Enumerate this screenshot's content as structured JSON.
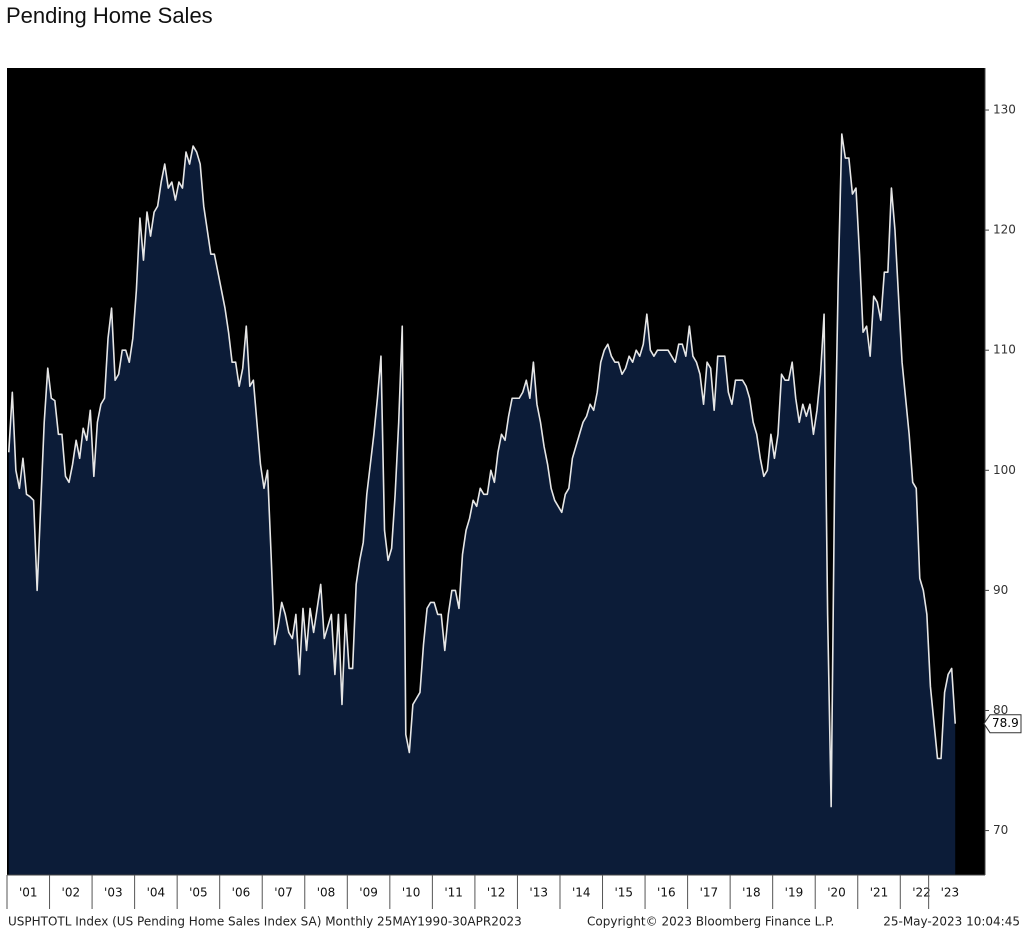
{
  "chart_data": {
    "type": "area",
    "title": "Pending Home Sales",
    "footer_left": "USPHTOTL Index (US Pending Home Sales Index SA)  Monthly 25MAY1990-30APR2023",
    "footer_mid": "Copyright© 2023 Bloomberg Finance L.P.",
    "footer_right": "25-May-2023 10:04:45",
    "background": "#000000",
    "line_color": "#e6e6e6",
    "area_color": "#0c1c38",
    "ylim": [
      66.3,
      133.5
    ],
    "yticks": [
      70,
      80,
      90,
      100,
      110,
      120,
      130
    ],
    "y_axis_side": "right",
    "grid": false,
    "categories": [
      null,
      null,
      null,
      null,
      null,
      null,
      "'01",
      null,
      null,
      null,
      null,
      null,
      null,
      null,
      null,
      null,
      null,
      null,
      "'02",
      null,
      null,
      null,
      null,
      null,
      null,
      null,
      null,
      null,
      null,
      null,
      "'03",
      null,
      null,
      null,
      null,
      null,
      null,
      null,
      null,
      null,
      null,
      null,
      "'04",
      null,
      null,
      null,
      null,
      null,
      null,
      null,
      null,
      null,
      null,
      null,
      "'05",
      null,
      null,
      null,
      null,
      null,
      null,
      null,
      null,
      null,
      null,
      null,
      "'06",
      null,
      null,
      null,
      null,
      null,
      null,
      null,
      null,
      null,
      null,
      null,
      "'07",
      null,
      null,
      null,
      null,
      null,
      null,
      null,
      null,
      null,
      null,
      null,
      "'08",
      null,
      null,
      null,
      null,
      null,
      null,
      null,
      null,
      null,
      null,
      null,
      "'09",
      null,
      null,
      null,
      null,
      null,
      null,
      null,
      null,
      null,
      null,
      null,
      "'10",
      null,
      null,
      null,
      null,
      null,
      null,
      null,
      null,
      null,
      null,
      null,
      "'11",
      null,
      null,
      null,
      null,
      null,
      null,
      null,
      null,
      null,
      null,
      null,
      "'12",
      null,
      null,
      null,
      null,
      null,
      null,
      null,
      null,
      null,
      null,
      null,
      "'13",
      null,
      null,
      null,
      null,
      null,
      null,
      null,
      null,
      null,
      null,
      null,
      "'14",
      null,
      null,
      null,
      null,
      null,
      null,
      null,
      null,
      null,
      null,
      null,
      "'15",
      null,
      null,
      null,
      null,
      null,
      null,
      null,
      null,
      null,
      null,
      null,
      "'16",
      null,
      null,
      null,
      null,
      null,
      null,
      null,
      null,
      null,
      null,
      null,
      "'17",
      null,
      null,
      null,
      null,
      null,
      null,
      null,
      null,
      null,
      null,
      null,
      "'18",
      null,
      null,
      null,
      null,
      null,
      null,
      null,
      null,
      null,
      null,
      null,
      "'19",
      null,
      null,
      null,
      null,
      null,
      null,
      null,
      null,
      null,
      null,
      null,
      "'20",
      null,
      null,
      null,
      null,
      null,
      null,
      null,
      null,
      null,
      null,
      null,
      "'21",
      null,
      null,
      null,
      null,
      null,
      null,
      null,
      null,
      null,
      null,
      null,
      "'22",
      null,
      null,
      null,
      null,
      null,
      null,
      null,
      "'23",
      null
    ],
    "values": [
      101.5,
      106.5,
      100,
      98.5,
      101,
      98,
      97.8,
      97.5,
      90,
      97,
      104,
      108.5,
      106,
      105.8,
      103,
      103,
      99.5,
      99,
      100.5,
      102.5,
      101,
      103.5,
      102.5,
      105,
      99.5,
      104,
      105.5,
      106,
      111,
      113.5,
      107.5,
      108,
      110,
      110,
      109,
      111,
      115,
      121,
      117.5,
      121.5,
      119.5,
      121.5,
      122,
      124,
      125.5,
      123.5,
      124,
      122.5,
      124,
      123.5,
      126.5,
      125.5,
      127,
      126.5,
      125.5,
      122,
      120,
      118,
      118,
      116.5,
      115,
      113.5,
      111.5,
      109,
      109,
      107,
      108.5,
      112,
      107,
      107.5,
      104,
      100.5,
      98.5,
      100,
      93,
      85.5,
      87,
      89,
      88,
      86.5,
      86,
      88,
      83,
      88.5,
      85,
      88.5,
      86.5,
      88.5,
      90.5,
      86,
      87,
      88,
      83,
      88,
      80.5,
      88,
      83.5,
      83.5,
      90.5,
      92.5,
      94,
      98,
      100.5,
      103,
      106,
      109.5,
      95,
      92.5,
      93.5,
      98,
      104,
      112,
      78,
      76.5,
      80.5,
      81,
      81.5,
      85.5,
      88.5,
      89,
      89,
      88,
      88,
      85,
      88,
      90,
      90,
      88.5,
      93,
      95,
      96,
      97.5,
      97,
      98.5,
      98,
      98,
      100,
      99,
      101.5,
      103,
      102.5,
      104.5,
      106,
      106,
      106,
      106.5,
      107.5,
      106,
      109,
      105.5,
      104,
      102,
      100.5,
      98.5,
      97.5,
      97,
      96.5,
      98,
      98.5,
      101,
      102,
      103,
      104,
      104.5,
      105.5,
      105,
      106.5,
      109,
      110,
      110.5,
      109.5,
      109,
      109,
      108,
      108.5,
      109.5,
      109,
      110,
      109.5,
      110.5,
      113,
      110,
      109.5,
      110,
      110,
      110,
      110,
      109.5,
      109,
      110.5,
      110.5,
      109.5,
      112,
      109.5,
      109,
      108,
      105.5,
      109,
      108.5,
      105,
      109.5,
      109.5,
      109.5,
      106.5,
      105.5,
      107.5,
      107.5,
      107.5,
      107,
      106,
      104,
      103,
      101,
      99.5,
      100,
      103,
      101,
      103,
      108,
      107.5,
      107.5,
      109,
      106,
      104,
      105.5,
      104.5,
      105.5,
      103,
      105,
      108,
      113,
      88,
      72,
      100,
      116,
      128,
      126,
      126,
      123,
      123.5,
      118,
      111.5,
      112,
      109.5,
      114.5,
      114,
      112.5,
      116.5,
      116.5,
      123.5,
      120,
      114.5,
      109,
      106,
      103,
      99,
      98.5,
      91,
      90,
      88,
      82,
      79,
      76,
      76,
      81.5,
      83,
      83.5,
      78.9
    ]
  }
}
